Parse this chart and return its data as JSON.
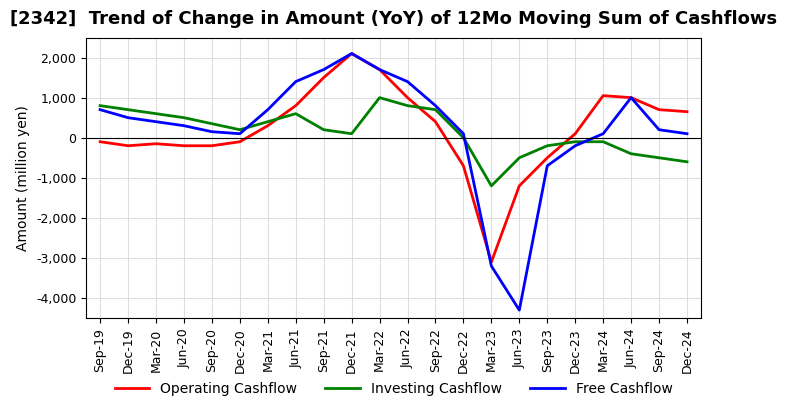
{
  "title": "[2342]  Trend of Change in Amount (YoY) of 12Mo Moving Sum of Cashflows",
  "ylabel": "Amount (million yen)",
  "x_labels": [
    "Sep-19",
    "Dec-19",
    "Mar-20",
    "Jun-20",
    "Sep-20",
    "Dec-20",
    "Mar-21",
    "Jun-21",
    "Sep-21",
    "Dec-21",
    "Mar-22",
    "Jun-22",
    "Sep-22",
    "Dec-22",
    "Mar-23",
    "Jun-23",
    "Sep-23",
    "Dec-23",
    "Mar-24",
    "Jun-24",
    "Sep-24",
    "Dec-24"
  ],
  "operating": [
    -100,
    -200,
    -150,
    -200,
    -200,
    -100,
    300,
    800,
    1500,
    2100,
    1700,
    1000,
    400,
    -700,
    -3100,
    -1200,
    -500,
    100,
    1050,
    1000,
    700,
    650
  ],
  "investing": [
    800,
    700,
    600,
    500,
    350,
    200,
    400,
    600,
    200,
    100,
    1000,
    800,
    700,
    0,
    -1200,
    -500,
    -200,
    -100,
    -100,
    -400,
    -500,
    -600
  ],
  "free": [
    700,
    500,
    400,
    300,
    150,
    100,
    700,
    1400,
    1700,
    2100,
    1700,
    1400,
    800,
    100,
    -3200,
    -4300,
    -700,
    -200,
    100,
    1000,
    200,
    100
  ],
  "ylim": [
    -4500,
    2500
  ],
  "yticks": [
    -4000,
    -3000,
    -2000,
    -1000,
    0,
    1000,
    2000
  ],
  "operating_color": "#ff0000",
  "investing_color": "#008000",
  "free_color": "#0000ff",
  "grid_color": "#dddddd",
  "bg_color": "#ffffff",
  "title_fontsize": 13,
  "axis_fontsize": 10,
  "tick_fontsize": 9,
  "legend_fontsize": 10
}
